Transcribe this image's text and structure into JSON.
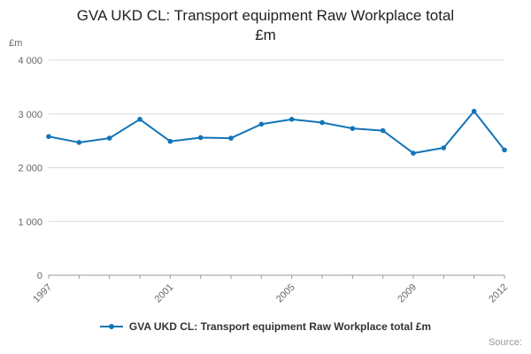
{
  "title_lines": [
    "GVA UKD CL: Transport equipment Raw Workplace total",
    "£m"
  ],
  "legend": {
    "label": "GVA UKD CL: Transport equipment Raw Workplace total £m"
  },
  "source_label": "Source:",
  "colors": {
    "line": "#1274b8",
    "grid": "#d8d8d8",
    "axis": "#9a9a9a",
    "tick_text": "#666666",
    "title_text": "#222222"
  },
  "chart_data": {
    "type": "line",
    "title": "GVA UKD CL: Transport equipment Raw Workplace total £m",
    "xlabel": "",
    "ylabel": "£m",
    "x": [
      1997,
      1998,
      1999,
      2000,
      2001,
      2002,
      2003,
      2004,
      2005,
      2006,
      2007,
      2008,
      2009,
      2010,
      2011,
      2012
    ],
    "series": [
      {
        "name": "GVA UKD CL: Transport equipment Raw Workplace total £m",
        "values": [
          2580,
          2470,
          2550,
          2900,
          2490,
          2560,
          2550,
          2810,
          2900,
          2840,
          2730,
          2690,
          2270,
          2370,
          3050,
          2330
        ]
      }
    ],
    "ylim": [
      0,
      4000
    ],
    "yticks": [
      0,
      1000,
      2000,
      3000,
      4000
    ],
    "ytick_labels": [
      "0",
      "1 000",
      "2 000",
      "3 000",
      "4 000"
    ],
    "xticks": [
      1997,
      2001,
      2005,
      2009,
      2012
    ],
    "grid": true,
    "legend_position": "bottom",
    "marker": "circle"
  }
}
